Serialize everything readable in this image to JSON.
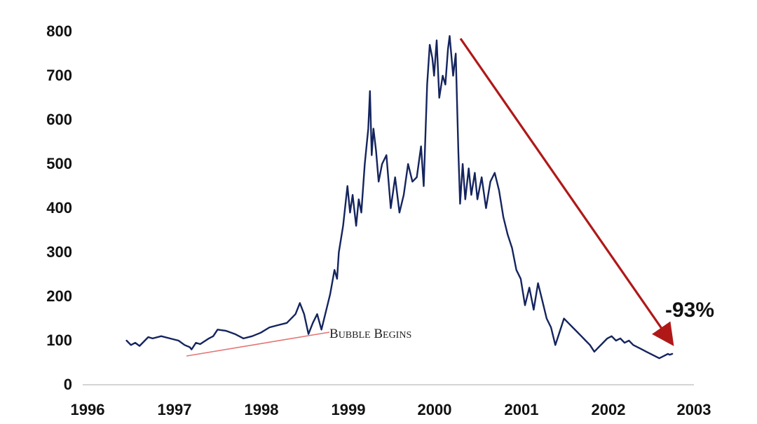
{
  "chart_data": {
    "type": "line",
    "title": "",
    "xlabel": "",
    "ylabel": "",
    "ylim": [
      0,
      800
    ],
    "xlim": [
      1996,
      2003
    ],
    "y_ticks": [
      "0",
      "100",
      "200",
      "300",
      "400",
      "500",
      "600",
      "700",
      "800"
    ],
    "x_ticks": [
      "1996",
      "1997",
      "1998",
      "1999",
      "2000",
      "2001",
      "2002",
      "2003"
    ],
    "grid": false,
    "legend": "none",
    "line_color": "#14245e",
    "series": [
      {
        "x": [
          1996.45,
          1996.5,
          1996.55,
          1996.6,
          1996.7,
          1996.75,
          1996.85,
          1996.95,
          1997.05,
          1997.12,
          1997.18,
          1997.2,
          1997.25,
          1997.3,
          1997.4,
          1997.45,
          1997.5,
          1997.6,
          1997.7,
          1997.8,
          1997.9,
          1998.0,
          1998.1,
          1998.2,
          1998.3,
          1998.4,
          1998.45,
          1998.5,
          1998.55,
          1998.6,
          1998.65,
          1998.7,
          1998.75,
          1998.8,
          1998.85,
          1998.88,
          1998.9,
          1998.95,
          1999.0,
          1999.03,
          1999.06,
          1999.1,
          1999.13,
          1999.16,
          1999.2,
          1999.24,
          1999.26,
          1999.28,
          1999.3,
          1999.33,
          1999.36,
          1999.4,
          1999.45,
          1999.5,
          1999.55,
          1999.6,
          1999.65,
          1999.7,
          1999.75,
          1999.8,
          1999.85,
          1999.88,
          1999.92,
          1999.95,
          1999.98,
          2000.0,
          2000.03,
          2000.06,
          2000.1,
          2000.13,
          2000.16,
          2000.18,
          2000.22,
          2000.25,
          2000.28,
          2000.3,
          2000.33,
          2000.36,
          2000.4,
          2000.43,
          2000.47,
          2000.5,
          2000.55,
          2000.6,
          2000.65,
          2000.7,
          2000.75,
          2000.8,
          2000.85,
          2000.9,
          2000.95,
          2001.0,
          2001.05,
          2001.1,
          2001.15,
          2001.2,
          2001.25,
          2001.3,
          2001.35,
          2001.4,
          2001.45,
          2001.5,
          2001.55,
          2001.6,
          2001.65,
          2001.7,
          2001.75,
          2001.8,
          2001.85,
          2001.9,
          2001.95,
          2002.0,
          2002.05,
          2002.1,
          2002.15,
          2002.2,
          2002.25,
          2002.3,
          2002.35,
          2002.4,
          2002.45,
          2002.5,
          2002.55,
          2002.6,
          2002.65,
          2002.7,
          2002.72,
          2002.75
        ],
        "values": [
          100,
          90,
          95,
          88,
          108,
          105,
          110,
          105,
          100,
          90,
          85,
          80,
          95,
          92,
          105,
          110,
          125,
          122,
          115,
          105,
          110,
          118,
          130,
          135,
          140,
          160,
          185,
          160,
          115,
          140,
          160,
          125,
          165,
          205,
          260,
          240,
          300,
          360,
          450,
          390,
          430,
          360,
          420,
          390,
          500,
          580,
          665,
          520,
          580,
          530,
          460,
          500,
          520,
          400,
          470,
          390,
          430,
          500,
          460,
          470,
          540,
          450,
          680,
          770,
          740,
          700,
          780,
          650,
          700,
          680,
          760,
          790,
          700,
          750,
          530,
          410,
          500,
          420,
          490,
          430,
          480,
          420,
          470,
          400,
          460,
          480,
          440,
          380,
          340,
          310,
          260,
          240,
          180,
          220,
          170,
          230,
          190,
          150,
          130,
          90,
          120,
          150,
          140,
          130,
          120,
          110,
          100,
          90,
          75,
          85,
          95,
          105,
          110,
          100,
          105,
          95,
          100,
          90,
          85,
          80,
          75,
          70,
          65,
          60,
          65,
          70,
          68,
          70
        ]
      }
    ],
    "annotations": [
      {
        "text": "Bubble Begins"
      },
      {
        "text": "-93%"
      }
    ]
  }
}
